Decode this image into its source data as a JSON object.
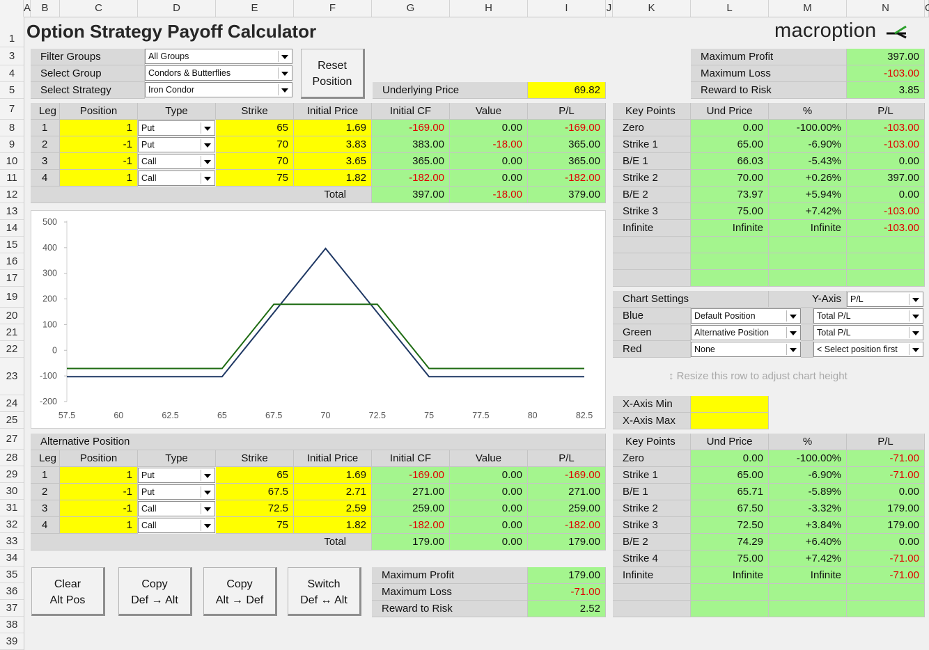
{
  "columns": [
    "A",
    "B",
    "C",
    "D",
    "E",
    "F",
    "G",
    "H",
    "I",
    "J",
    "K",
    "L",
    "M",
    "N",
    "O"
  ],
  "rows": [
    "1",
    "3",
    "4",
    "5",
    "7",
    "8",
    "9",
    "10",
    "11",
    "12",
    "13",
    "14",
    "15",
    "16",
    "17",
    "19",
    "20",
    "21",
    "22",
    "23",
    "24",
    "25",
    "27",
    "28",
    "29",
    "30",
    "31",
    "32",
    "33",
    "34",
    "35",
    "36",
    "37",
    "38",
    "39"
  ],
  "title": "Option Strategy Payoff Calculator",
  "logo_text": "macroption",
  "filters": [
    {
      "label": "Filter Groups",
      "value": "All Groups"
    },
    {
      "label": "Select Group",
      "value": "Condors & Butterflies"
    },
    {
      "label": "Select Strategy",
      "value": "Iron Condor"
    }
  ],
  "reset_button": [
    "Reset",
    "Position"
  ],
  "underlying": {
    "label": "Underlying Price",
    "value": "69.82"
  },
  "summary_top": [
    {
      "label": "Maximum Profit",
      "value": "397.00",
      "neg": false
    },
    {
      "label": "Maximum Loss",
      "value": "-103.00",
      "neg": true
    },
    {
      "label": "Reward to Risk",
      "value": "3.85",
      "neg": false
    }
  ],
  "legs_headers": [
    "Leg",
    "Position",
    "Type",
    "Strike",
    "Initial Price",
    "Initial CF",
    "Value",
    "P/L"
  ],
  "legs": [
    {
      "leg": "1",
      "position": "1",
      "type": "Put",
      "strike": "65",
      "price": "1.69",
      "cf": "-169.00",
      "value": "0.00",
      "pl": "-169.00"
    },
    {
      "leg": "2",
      "position": "-1",
      "type": "Put",
      "strike": "70",
      "price": "3.83",
      "cf": "383.00",
      "value": "-18.00",
      "pl": "365.00"
    },
    {
      "leg": "3",
      "position": "-1",
      "type": "Call",
      "strike": "70",
      "price": "3.65",
      "cf": "365.00",
      "value": "0.00",
      "pl": "365.00"
    },
    {
      "leg": "4",
      "position": "1",
      "type": "Call",
      "strike": "75",
      "price": "1.82",
      "cf": "-182.00",
      "value": "0.00",
      "pl": "-182.00"
    }
  ],
  "legs_total": {
    "label": "Total",
    "cf": "397.00",
    "value": "-18.00",
    "pl": "379.00"
  },
  "keypoints_headers": [
    "Key Points",
    "Und Price",
    "%",
    "P/L"
  ],
  "keypoints_top": [
    {
      "name": "Zero",
      "price": "0.00",
      "pct": "-100.00%",
      "pl": "-103.00"
    },
    {
      "name": "Strike 1",
      "price": "65.00",
      "pct": "-6.90%",
      "pl": "-103.00"
    },
    {
      "name": "B/E 1",
      "price": "66.03",
      "pct": "-5.43%",
      "pl": "0.00"
    },
    {
      "name": "Strike 2",
      "price": "70.00",
      "pct": "+0.26%",
      "pl": "397.00"
    },
    {
      "name": "B/E 2",
      "price": "73.97",
      "pct": "+5.94%",
      "pl": "0.00"
    },
    {
      "name": "Strike 3",
      "price": "75.00",
      "pct": "+7.42%",
      "pl": "-103.00"
    },
    {
      "name": "Infinite",
      "price": "Infinite",
      "pct": "Infinite",
      "pl": "-103.00"
    }
  ],
  "chart_settings": {
    "title": "Chart Settings",
    "yaxis_label": "Y-Axis",
    "yaxis_value": "P/L",
    "rows": [
      {
        "label": "Blue",
        "position": "Default Position",
        "metric": "Total P/L"
      },
      {
        "label": "Green",
        "position": "Alternative Position",
        "metric": "Total P/L"
      },
      {
        "label": "Red",
        "position": "None",
        "metric": "< Select position first"
      }
    ]
  },
  "resize_hint": "↕ Resize this row to adjust chart height",
  "xaxis": [
    {
      "label": "X-Axis Min",
      "value": ""
    },
    {
      "label": "X-Axis Max",
      "value": ""
    }
  ],
  "alt_title": "Alternative Position",
  "alt_legs": [
    {
      "leg": "1",
      "position": "1",
      "type": "Put",
      "strike": "65",
      "price": "1.69",
      "cf": "-169.00",
      "value": "0.00",
      "pl": "-169.00"
    },
    {
      "leg": "2",
      "position": "-1",
      "type": "Put",
      "strike": "67.5",
      "price": "2.71",
      "cf": "271.00",
      "value": "0.00",
      "pl": "271.00"
    },
    {
      "leg": "3",
      "position": "-1",
      "type": "Call",
      "strike": "72.5",
      "price": "2.59",
      "cf": "259.00",
      "value": "0.00",
      "pl": "259.00"
    },
    {
      "leg": "4",
      "position": "1",
      "type": "Call",
      "strike": "75",
      "price": "1.82",
      "cf": "-182.00",
      "value": "0.00",
      "pl": "-182.00"
    }
  ],
  "alt_total": {
    "label": "Total",
    "cf": "179.00",
    "value": "0.00",
    "pl": "179.00"
  },
  "keypoints_alt": [
    {
      "name": "Zero",
      "price": "0.00",
      "pct": "-100.00%",
      "pl": "-71.00"
    },
    {
      "name": "Strike 1",
      "price": "65.00",
      "pct": "-6.90%",
      "pl": "-71.00"
    },
    {
      "name": "B/E 1",
      "price": "65.71",
      "pct": "-5.89%",
      "pl": "0.00"
    },
    {
      "name": "Strike 2",
      "price": "67.50",
      "pct": "-3.32%",
      "pl": "179.00"
    },
    {
      "name": "Strike 3",
      "price": "72.50",
      "pct": "+3.84%",
      "pl": "179.00"
    },
    {
      "name": "B/E 2",
      "price": "74.29",
      "pct": "+6.40%",
      "pl": "0.00"
    },
    {
      "name": "Strike 4",
      "price": "75.00",
      "pct": "+7.42%",
      "pl": "-71.00"
    },
    {
      "name": "Infinite",
      "price": "Infinite",
      "pct": "Infinite",
      "pl": "-71.00"
    }
  ],
  "action_buttons": [
    {
      "line1": "Clear",
      "line2": "Alt Pos"
    },
    {
      "line1": "Copy",
      "line2": "Def → Alt"
    },
    {
      "line1": "Copy",
      "line2": "Alt → Def"
    },
    {
      "line1": "Switch",
      "line2": "Def ↔ Alt"
    }
  ],
  "summary_alt": [
    {
      "label": "Maximum Profit",
      "value": "179.00",
      "neg": false
    },
    {
      "label": "Maximum Loss",
      "value": "-71.00",
      "neg": true
    },
    {
      "label": "Reward to Risk",
      "value": "2.52",
      "neg": false
    }
  ],
  "colors": {
    "yellow": "#ffff00",
    "green_cell": "#a4f58e",
    "grey_cell": "#d9d9d9",
    "negative": "#e00000",
    "blue_line": "#1f3864",
    "green_line": "#1e6b12"
  },
  "chart_data": {
    "type": "line",
    "xlim": [
      57.5,
      82.5
    ],
    "ylim": [
      -200,
      500
    ],
    "x_ticks": [
      "57.5",
      "60",
      "62.5",
      "65",
      "67.5",
      "70",
      "72.5",
      "75",
      "77.5",
      "80",
      "82.5"
    ],
    "y_ticks": [
      "500",
      "400",
      "300",
      "200",
      "100",
      "0",
      "-100",
      "-200"
    ],
    "series": [
      {
        "color": "#1f3864",
        "x": [
          57.5,
          65,
          70,
          75,
          82.5
        ],
        "y": [
          -103,
          -103,
          397,
          -103,
          -103
        ]
      },
      {
        "color": "#1e6b12",
        "x": [
          57.5,
          65,
          67.5,
          72.5,
          75,
          82.5
        ],
        "y": [
          -71,
          -71,
          179,
          179,
          -71,
          -71
        ]
      }
    ]
  }
}
